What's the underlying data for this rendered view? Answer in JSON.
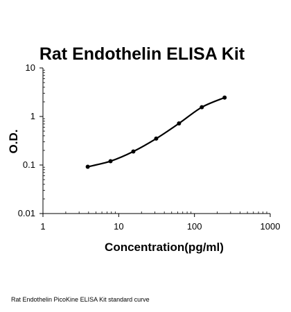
{
  "caption": "Rat Endothelin PicoKine ELISA Kit standard curve",
  "chart_data": {
    "type": "line",
    "title": "Rat Endothelin ELISA Kit",
    "xlabel": "Concentration(pg/ml)",
    "ylabel": "O.D.",
    "x_scale": "log",
    "y_scale": "log",
    "xlim": [
      1,
      1000
    ],
    "ylim": [
      0.01,
      10
    ],
    "x_ticks": [
      "1",
      "10",
      "100",
      "1000"
    ],
    "y_ticks": [
      "0.01",
      "0.1",
      "1",
      "10"
    ],
    "grid": false,
    "series": [
      {
        "x": [
          3.9,
          7.8,
          15.6,
          31.25,
          62.5,
          125,
          250
        ],
        "y": [
          0.092,
          0.12,
          0.19,
          0.35,
          0.72,
          1.55,
          2.45
        ]
      }
    ],
    "line_color": "#000000"
  }
}
